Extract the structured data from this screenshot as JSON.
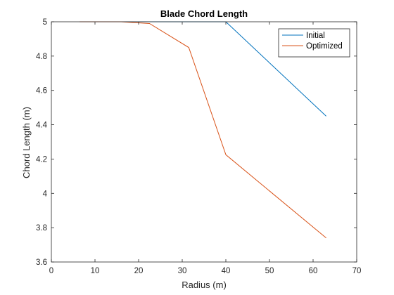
{
  "chart_data": {
    "type": "line",
    "title": "Blade Chord Length",
    "xlabel": "Radius (m)",
    "ylabel": "Chord Length (m)",
    "xlim": [
      0,
      70
    ],
    "ylim": [
      3.6,
      5
    ],
    "xticks": [
      0,
      10,
      20,
      30,
      40,
      50,
      60,
      70
    ],
    "yticks": [
      3.6,
      3.8,
      4,
      4.2,
      4.4,
      4.6,
      4.8,
      5
    ],
    "xtick_labels": [
      "0",
      "10",
      "20",
      "30",
      "40",
      "50",
      "60",
      "70"
    ],
    "ytick_labels": [
      "3.6",
      "3.8",
      "4",
      "4.2",
      "4.4",
      "4.6",
      "4.8",
      "5"
    ],
    "grid": false,
    "legend_position": "top-right",
    "series": [
      {
        "name": "Initial",
        "color": "#0072BD",
        "x": [
          6.5,
          16,
          22.5,
          31.5,
          40,
          63
        ],
        "y": [
          5,
          5,
          5,
          5,
          5,
          4.45
        ]
      },
      {
        "name": "Optimized",
        "color": "#D95319",
        "x": [
          6.5,
          16,
          22.5,
          31.5,
          40,
          63
        ],
        "y": [
          5,
          5,
          4.99,
          4.85,
          4.225,
          3.74
        ]
      }
    ]
  }
}
